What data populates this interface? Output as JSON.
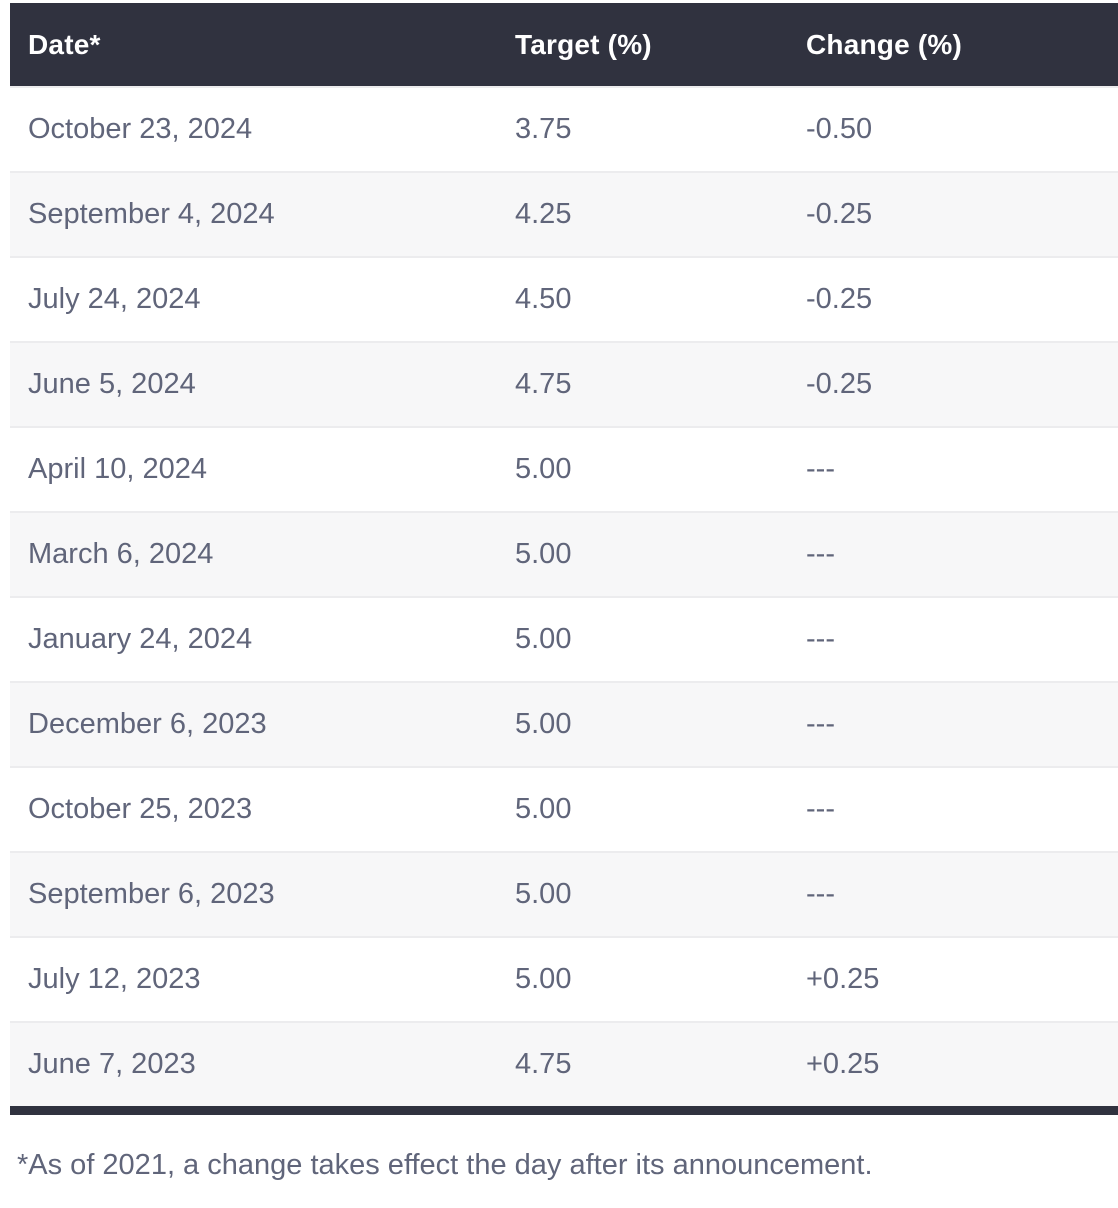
{
  "colors": {
    "header_bg": "#30323f",
    "header_text": "#ffffff",
    "body_text": "#60657a",
    "row_bg": "#ffffff",
    "row_alt_bg": "#f7f7f8",
    "row_border": "#ececee",
    "bottom_border": "#30323f"
  },
  "chart_data": {
    "type": "table",
    "columns": [
      "Date*",
      "Target (%)",
      "Change (%)"
    ],
    "rows": [
      [
        "October 23, 2024",
        "3.75",
        "-0.50"
      ],
      [
        "September 4, 2024",
        "4.25",
        "-0.25"
      ],
      [
        "July 24, 2024",
        "4.50",
        "-0.25"
      ],
      [
        "June 5, 2024",
        "4.75",
        "-0.25"
      ],
      [
        "April 10, 2024",
        "5.00",
        "---"
      ],
      [
        "March 6, 2024",
        "5.00",
        "---"
      ],
      [
        "January 24, 2024",
        "5.00",
        "---"
      ],
      [
        "December 6, 2023",
        "5.00",
        "---"
      ],
      [
        "October 25, 2023",
        "5.00",
        "---"
      ],
      [
        "September 6, 2023",
        "5.00",
        "---"
      ],
      [
        "July 12, 2023",
        "5.00",
        "+0.25"
      ],
      [
        "June 7, 2023",
        "4.75",
        "+0.25"
      ]
    ],
    "title": "",
    "legend": null,
    "grid": "horizontal-row-separators"
  },
  "footnote": "*As of 2021, a change takes effect the day after its announcement."
}
